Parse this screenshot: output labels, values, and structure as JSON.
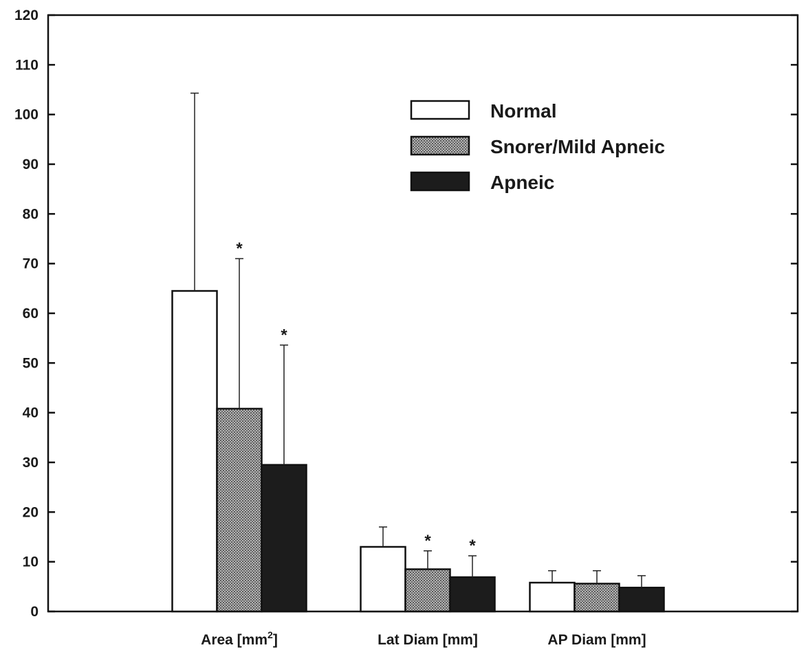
{
  "chart_data": {
    "type": "bar",
    "title": "",
    "xlabel": "",
    "ylabel": "",
    "ylim": [
      0,
      120
    ],
    "yticks": [
      0,
      10,
      20,
      30,
      40,
      50,
      60,
      70,
      80,
      90,
      100,
      110,
      120
    ],
    "categories": [
      {
        "pre": "Area [mm",
        "sup": "2",
        "post": "]"
      },
      {
        "pre": "Lat Diam [mm]",
        "sup": "",
        "post": ""
      },
      {
        "pre": "AP Diam [mm]",
        "sup": "",
        "post": ""
      }
    ],
    "series": [
      {
        "name": "Normal",
        "fill": "#ffffff",
        "values": [
          64.5,
          13.0,
          5.8
        ],
        "error_upper": [
          104.3,
          17.0,
          8.2
        ],
        "significant": [
          false,
          false,
          false
        ]
      },
      {
        "name": "Snorer/Mild Apneic",
        "fill": "#8c8c8c",
        "values": [
          40.8,
          8.5,
          5.6
        ],
        "error_upper": [
          71.0,
          12.2,
          8.2
        ],
        "significant": [
          true,
          true,
          false
        ]
      },
      {
        "name": "Apneic",
        "fill": "#1c1c1c",
        "values": [
          29.5,
          6.9,
          4.8
        ],
        "error_upper": [
          53.6,
          11.2,
          7.2
        ],
        "significant": [
          true,
          true,
          false
        ]
      }
    ],
    "significance_marker": "*",
    "legend_position": "top-right",
    "grid": false
  }
}
